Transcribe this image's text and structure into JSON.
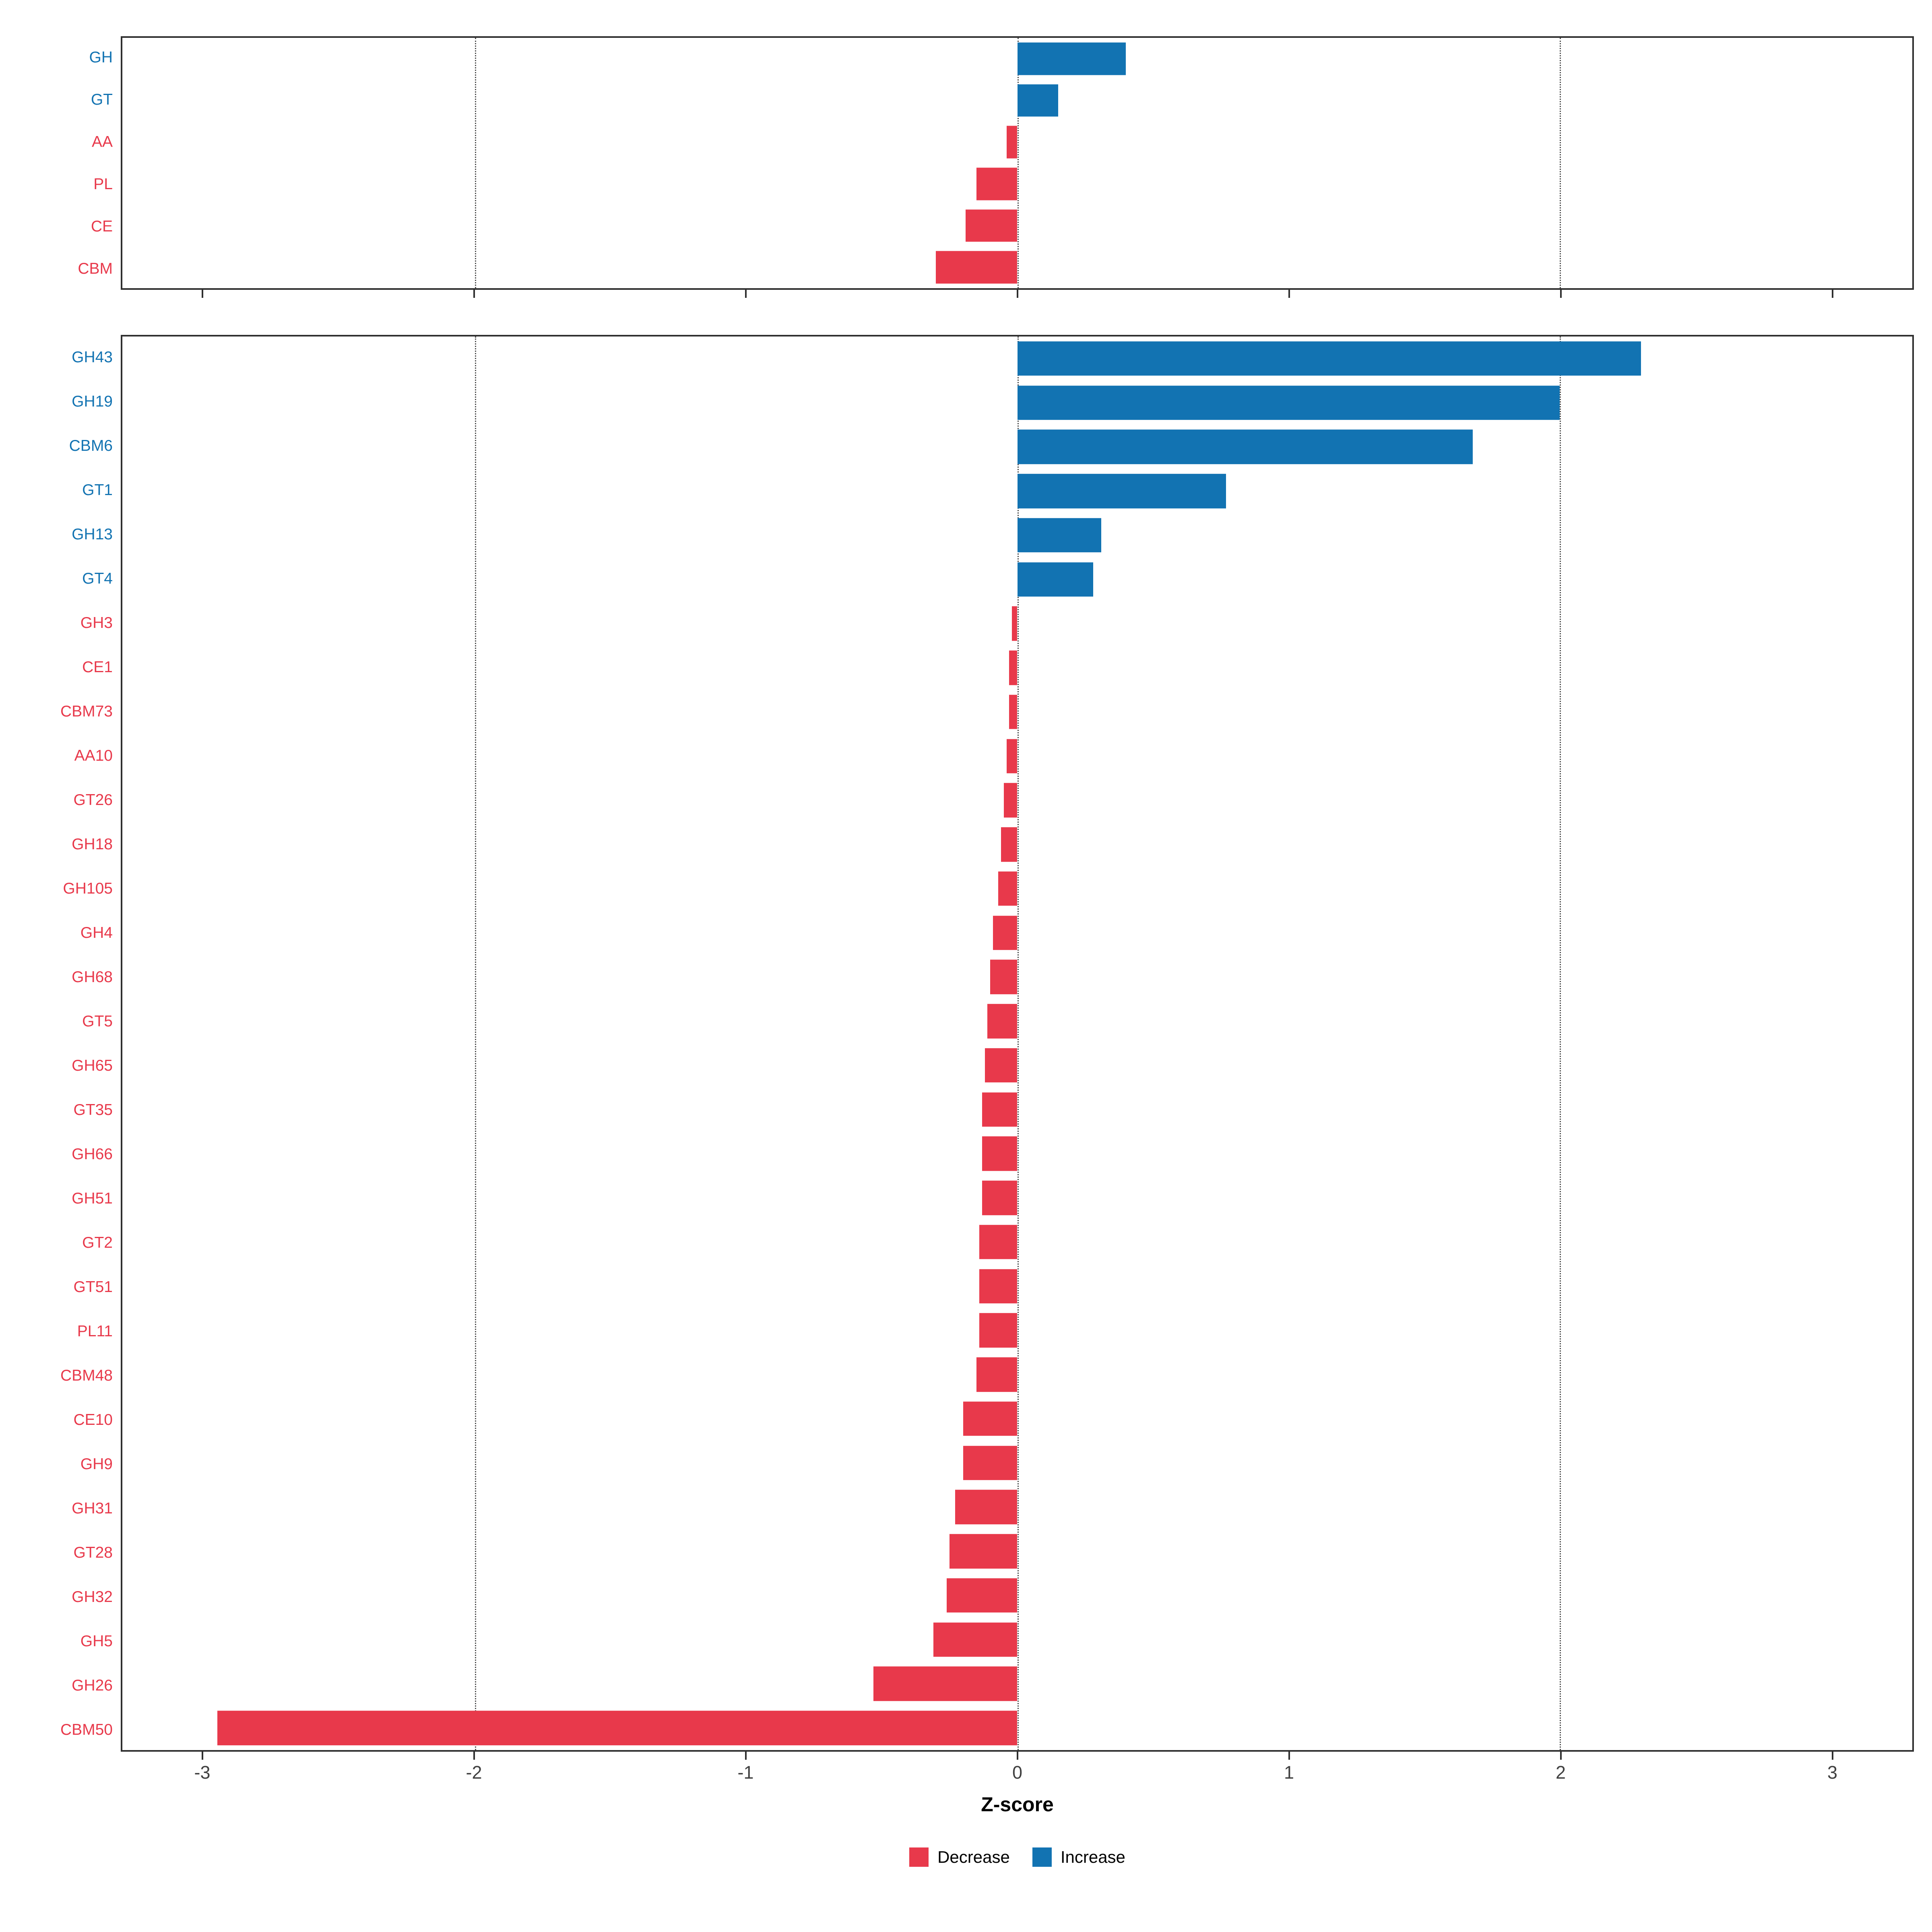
{
  "figure": {
    "xlabel": "Z-score",
    "x_ticks": [
      -3,
      -2,
      -1,
      0,
      1,
      2,
      3
    ],
    "x_domain": [
      -3.3,
      3.3
    ],
    "gridlines": [
      -2,
      0,
      2
    ],
    "colors": {
      "decrease": "#E8394B",
      "increase": "#1273B2",
      "axis_text": "#404040",
      "panel_border": "#2f2f2f"
    },
    "legend": [
      {
        "label": "Decrease",
        "color": "#E8394B"
      },
      {
        "label": "Increase",
        "color": "#1273B2"
      }
    ]
  },
  "chart_data": [
    {
      "type": "bar",
      "orientation": "horizontal",
      "panel": "top",
      "title": "",
      "xlabel": "Z-score",
      "xlim": [
        -3.3,
        3.3
      ],
      "categories": [
        "GH",
        "GT",
        "AA",
        "PL",
        "CE",
        "CBM"
      ],
      "values": [
        0.4,
        0.15,
        -0.04,
        -0.15,
        -0.19,
        -0.3
      ]
    },
    {
      "type": "bar",
      "orientation": "horizontal",
      "panel": "bottom",
      "title": "",
      "xlabel": "Z-score",
      "xlim": [
        -3.3,
        3.3
      ],
      "categories": [
        "GH43",
        "GH19",
        "CBM6",
        "GT1",
        "GH13",
        "GT4",
        "GH3",
        "CE1",
        "CBM73",
        "AA10",
        "GT26",
        "GH18",
        "GH105",
        "GH4",
        "GH68",
        "GT5",
        "GH65",
        "GT35",
        "GH66",
        "GH51",
        "GT2",
        "GT51",
        "PL11",
        "CBM48",
        "CE10",
        "GH9",
        "GH31",
        "GT28",
        "GH32",
        "GH5",
        "GH26",
        "CBM50"
      ],
      "values": [
        2.3,
        2.0,
        1.68,
        0.77,
        0.31,
        0.28,
        -0.02,
        -0.03,
        -0.03,
        -0.04,
        -0.05,
        -0.06,
        -0.07,
        -0.09,
        -0.1,
        -0.11,
        -0.12,
        -0.13,
        -0.13,
        -0.13,
        -0.14,
        -0.14,
        -0.14,
        -0.15,
        -0.2,
        -0.2,
        -0.23,
        -0.25,
        -0.26,
        -0.31,
        -0.53,
        -2.95
      ]
    }
  ]
}
